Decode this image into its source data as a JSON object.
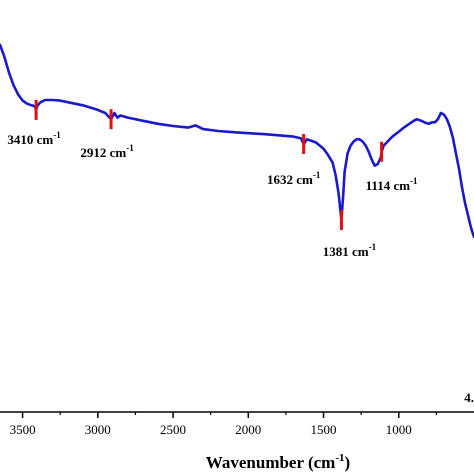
{
  "chart_data": {
    "type": "line",
    "title": "",
    "xlabel": "Wavenumber (cm",
    "xlabel_sup": "-1",
    "xlabel_close": ")",
    "ylabel": "",
    "xlim": [
      3650,
      500
    ],
    "ylim": [
      0,
      100
    ],
    "x_reversed": true,
    "grid": false,
    "colors": {
      "line": "#1a1acc",
      "marker": "#e01010",
      "axis": "#000000"
    },
    "x_ticks": [
      "3500",
      "3000",
      "2500",
      "2000",
      "1500",
      "1000"
    ],
    "series": [
      {
        "x": [
          3650,
          3620,
          3590,
          3560,
          3530,
          3500,
          3470,
          3440,
          3420,
          3410,
          3400,
          3380,
          3350,
          3300,
          3250,
          3200,
          3100,
          3000,
          2950,
          2912,
          2890,
          2870,
          2850,
          2800,
          2700,
          2600,
          2500,
          2400,
          2350,
          2300,
          2200,
          2100,
          2000,
          1900,
          1800,
          1750,
          1700,
          1650,
          1632,
          1610,
          1580,
          1550,
          1500,
          1470,
          1440,
          1420,
          1400,
          1390,
          1381,
          1370,
          1360,
          1340,
          1320,
          1300,
          1280,
          1260,
          1240,
          1220,
          1200,
          1180,
          1160,
          1140,
          1120,
          1114,
          1100,
          1080,
          1060,
          1040,
          1000,
          960,
          930,
          900,
          880,
          850,
          820,
          800,
          780,
          760,
          740,
          720,
          700,
          680,
          660,
          640,
          620,
          600,
          580,
          560,
          540,
          520,
          500
        ],
        "y": [
          92,
          88,
          83,
          79,
          76,
          74,
          73,
          72.5,
          72.2,
          71,
          72.5,
          73.5,
          74.2,
          74.2,
          74.0,
          73.5,
          72.5,
          71.0,
          70.0,
          68.0,
          70.0,
          68.5,
          69.2,
          68.5,
          67.5,
          66.5,
          65.8,
          65.3,
          66.0,
          64.8,
          64.2,
          63.8,
          63.5,
          63.2,
          62.8,
          62.6,
          62.4,
          61.8,
          60.0,
          61.5,
          61.0,
          60.5,
          58.5,
          56.5,
          54.0,
          50.0,
          44.0,
          39.5,
          35.5,
          43.0,
          51.0,
          57.0,
          59.5,
          60.8,
          61.5,
          61.5,
          60.8,
          59.5,
          57.5,
          55.0,
          53.0,
          53.5,
          55.5,
          57.5,
          59.5,
          60.5,
          61.5,
          62.5,
          64.0,
          65.5,
          66.5,
          67.5,
          68.0,
          67.5,
          66.8,
          66.5,
          67.0,
          67.0,
          68.0,
          70.0,
          69.5,
          68.0,
          65.5,
          62.0,
          57.0,
          52.0,
          46.0,
          41.0,
          37.0,
          33.0,
          30.0
        ]
      }
    ],
    "annotations": [
      {
        "x": 3410,
        "label": "3410 cm",
        "sup": "-1"
      },
      {
        "x": 2912,
        "label": "2912 cm",
        "sup": "-1"
      },
      {
        "x": 1632,
        "label": "1632 cm",
        "sup": "-1"
      },
      {
        "x": 1381,
        "label": "1381 cm",
        "sup": "-1"
      },
      {
        "x": 1114,
        "label": "1114 cm",
        "sup": "-1"
      }
    ],
    "corner_label": "4."
  }
}
